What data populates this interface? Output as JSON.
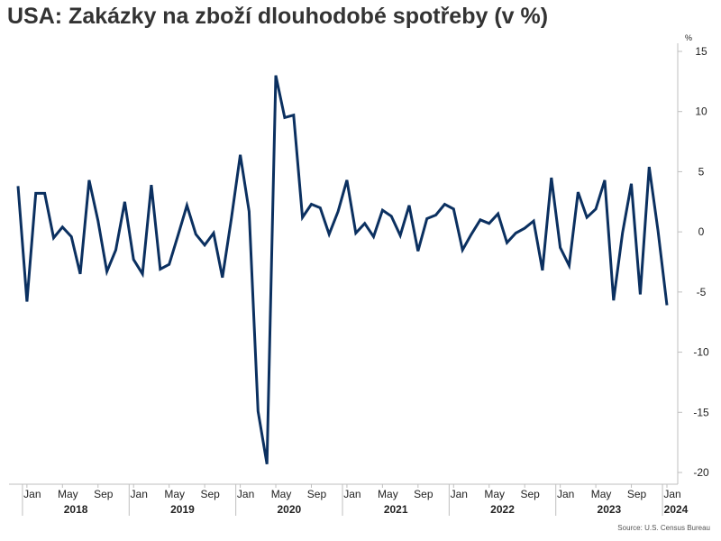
{
  "title": "USA: Zakázky na zboží dlouhodobé spotřeby (v %)",
  "source": "Source: U.S. Census Bureau",
  "chart_data": {
    "type": "line",
    "title": "USA: Zakázky na zboží dlouhodobé spotřeby (v %)",
    "xlabel": "",
    "ylabel": "%",
    "ylim": [
      -20,
      15
    ],
    "yticks": [
      15,
      10,
      5,
      0,
      -5,
      -10,
      -15,
      -20
    ],
    "grid": false,
    "color": "#0b3060",
    "x_tick_labels": [
      "Jan",
      "May",
      "Sep",
      "Jan",
      "May",
      "Sep",
      "Jan",
      "May",
      "Sep",
      "Jan",
      "May",
      "Sep",
      "Jan",
      "May",
      "Sep",
      "Jan",
      "May",
      "Sep",
      "Jan"
    ],
    "year_labels": [
      "2018",
      "2019",
      "2020",
      "2021",
      "2022",
      "2023",
      "2024"
    ],
    "start": "2017-12",
    "series": [
      {
        "values": [
          3.8,
          -5.8,
          3.2,
          3.2,
          -0.5,
          0.4,
          -0.4,
          -3.5,
          4.3,
          0.9,
          -3.3,
          -1.5,
          2.5,
          -2.3,
          -3.5,
          3.9,
          -3.1,
          -2.7,
          -0.3,
          2.2,
          -0.2,
          -1.1,
          -0.1,
          -3.8,
          1.1,
          6.4,
          1.7,
          -14.9,
          -19.3,
          13.0,
          9.5,
          9.7,
          1.2,
          2.3,
          2.0,
          -0.2,
          1.7,
          4.3,
          -0.1,
          0.7,
          -0.4,
          1.8,
          1.3,
          -0.3,
          2.2,
          -1.6,
          1.1,
          1.4,
          2.3,
          1.9,
          -1.5,
          -0.2,
          1.0,
          0.7,
          1.5,
          -0.9,
          -0.1,
          0.3,
          0.9,
          -3.2,
          4.5,
          -1.3,
          -2.8,
          3.3,
          1.2,
          1.9,
          4.3,
          -5.7,
          -0.1,
          4.0,
          -5.2,
          5.4,
          0.1,
          -6.1
        ]
      }
    ]
  }
}
